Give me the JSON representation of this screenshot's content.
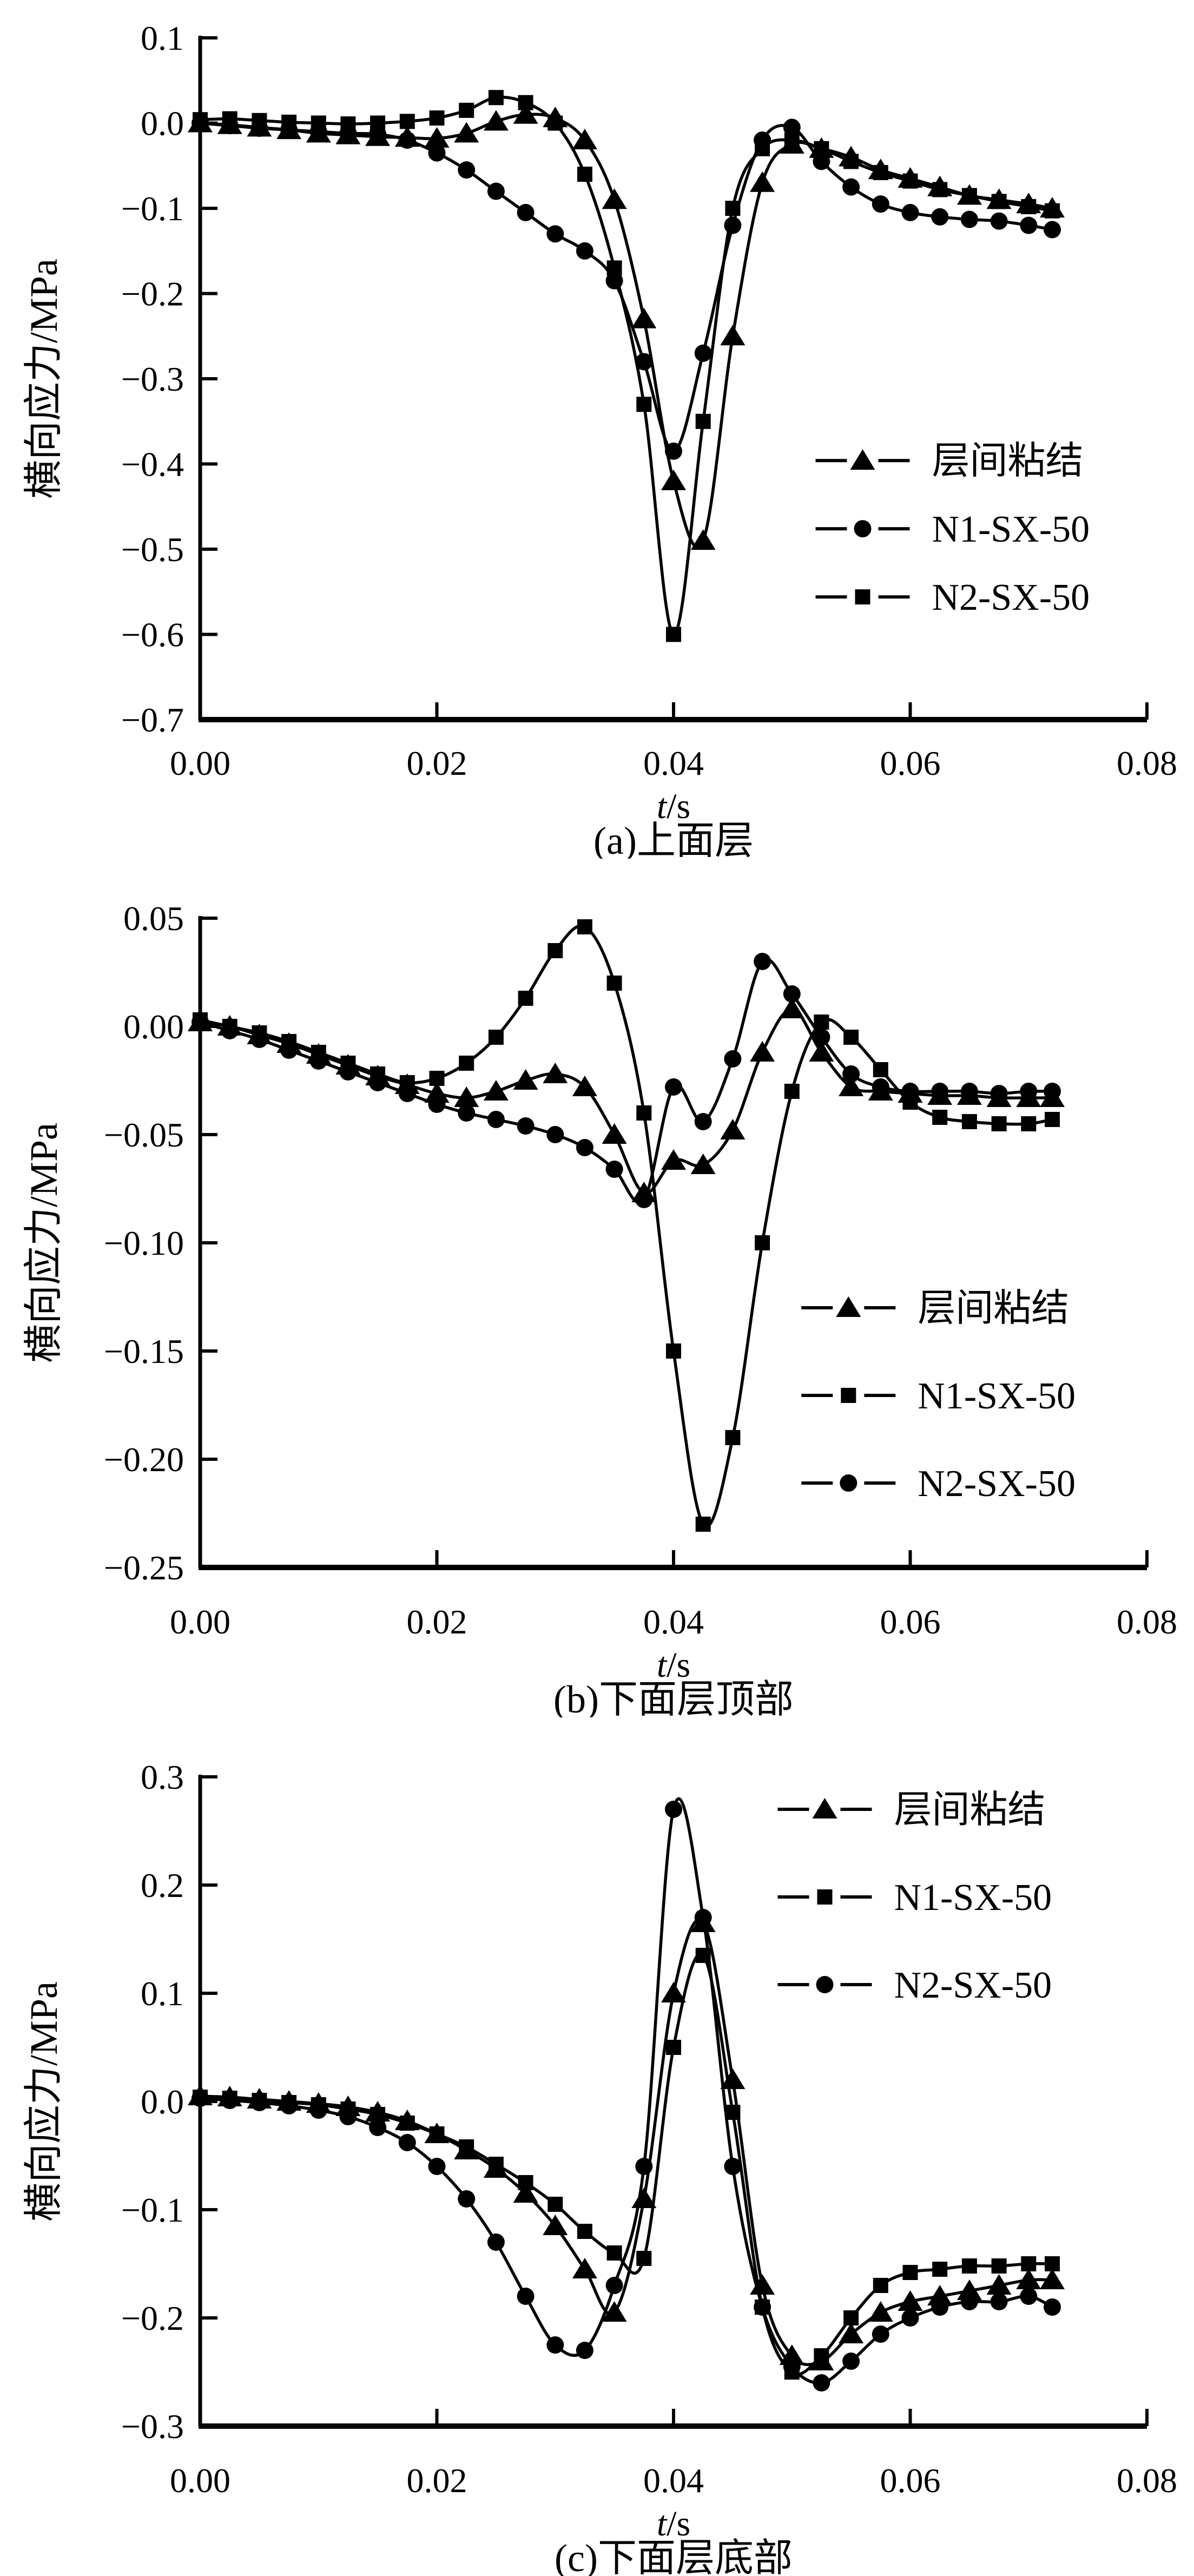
{
  "page": {
    "background": "#ffffff",
    "ink_color": "#000000"
  },
  "chart_data": [
    {
      "id": "a",
      "type": "line",
      "caption": "(a)上面层",
      "xlabel": {
        "italic": "t",
        "plain": "/s"
      },
      "ylabel": "横向应力/MPa",
      "xlim": [
        0,
        0.08
      ],
      "ylim": [
        -0.7,
        0.1
      ],
      "grid": false,
      "legend_position": "inside-middle-right",
      "legend": {
        "fx": 0.65,
        "rows_fy": [
          0.62,
          0.72,
          0.82
        ]
      },
      "xticks": [
        {
          "v": 0.0,
          "label": "0.00"
        },
        {
          "v": 0.02,
          "label": "0.02"
        },
        {
          "v": 0.04,
          "label": "0.04"
        },
        {
          "v": 0.06,
          "label": "0.06"
        },
        {
          "v": 0.08,
          "label": "0.08"
        }
      ],
      "yticks": [
        {
          "v": 0.1,
          "label": "0.1"
        },
        {
          "v": 0.0,
          "label": "0.0"
        },
        {
          "v": -0.1,
          "label": "−0.1"
        },
        {
          "v": -0.2,
          "label": "−0.2"
        },
        {
          "v": -0.3,
          "label": "−0.3"
        },
        {
          "v": -0.4,
          "label": "−0.4"
        },
        {
          "v": -0.5,
          "label": "−0.5"
        },
        {
          "v": -0.6,
          "label": "−0.6"
        },
        {
          "v": -0.7,
          "label": "−0.7"
        }
      ],
      "x": [
        0,
        0.0025,
        0.005,
        0.0075,
        0.01,
        0.0125,
        0.015,
        0.0175,
        0.02,
        0.0225,
        0.025,
        0.0275,
        0.03,
        0.0325,
        0.035,
        0.0375,
        0.04,
        0.0425,
        0.045,
        0.0475,
        0.05,
        0.0525,
        0.055,
        0.0575,
        0.06,
        0.0625,
        0.065,
        0.0675,
        0.07,
        0.072
      ],
      "series": [
        {
          "name": "层间粘结",
          "marker": "triangle",
          "y": [
            0.0,
            -0.002,
            -0.005,
            -0.008,
            -0.012,
            -0.014,
            -0.016,
            -0.017,
            -0.018,
            -0.012,
            0.002,
            0.01,
            0.006,
            -0.02,
            -0.09,
            -0.23,
            -0.42,
            -0.49,
            -0.25,
            -0.07,
            -0.025,
            -0.03,
            -0.04,
            -0.055,
            -0.065,
            -0.075,
            -0.085,
            -0.09,
            -0.095,
            -0.1
          ]
        },
        {
          "name": "N1-SX-50",
          "marker": "circle",
          "y": [
            0.0,
            -0.003,
            -0.006,
            -0.008,
            -0.01,
            -0.012,
            -0.013,
            -0.02,
            -0.035,
            -0.055,
            -0.08,
            -0.105,
            -0.13,
            -0.15,
            -0.185,
            -0.28,
            -0.385,
            -0.27,
            -0.12,
            -0.02,
            -0.005,
            -0.045,
            -0.075,
            -0.095,
            -0.105,
            -0.11,
            -0.113,
            -0.115,
            -0.12,
            -0.125
          ]
        },
        {
          "name": "N2-SX-50",
          "marker": "square",
          "y": [
            0.004,
            0.005,
            0.003,
            0.001,
            0.0,
            -0.001,
            0.0,
            0.002,
            0.006,
            0.015,
            0.03,
            0.024,
            0.0,
            -0.06,
            -0.17,
            -0.33,
            -0.6,
            -0.35,
            -0.1,
            -0.03,
            -0.02,
            -0.03,
            -0.045,
            -0.058,
            -0.068,
            -0.078,
            -0.085,
            -0.092,
            -0.098,
            -0.103
          ]
        }
      ]
    },
    {
      "id": "b",
      "type": "line",
      "caption": "(b)下面层顶部",
      "xlabel": {
        "italic": "t",
        "plain": "/s"
      },
      "ylabel": "横向应力/MPa",
      "xlim": [
        0,
        0.08
      ],
      "ylim": [
        -0.25,
        0.05
      ],
      "grid": false,
      "legend_position": "inside-lower-right",
      "legend": {
        "fx": 0.635,
        "rows_fy": [
          0.6,
          0.735,
          0.87
        ]
      },
      "xticks": [
        {
          "v": 0.0,
          "label": "0.00"
        },
        {
          "v": 0.02,
          "label": "0.02"
        },
        {
          "v": 0.04,
          "label": "0.04"
        },
        {
          "v": 0.06,
          "label": "0.06"
        },
        {
          "v": 0.08,
          "label": "0.08"
        }
      ],
      "yticks": [
        {
          "v": 0.05,
          "label": "0.05"
        },
        {
          "v": 0.0,
          "label": "0.00"
        },
        {
          "v": -0.05,
          "label": "−0.05"
        },
        {
          "v": -0.1,
          "label": "−0.10"
        },
        {
          "v": -0.15,
          "label": "−0.15"
        },
        {
          "v": -0.2,
          "label": "−0.20"
        },
        {
          "v": -0.25,
          "label": "−0.25"
        }
      ],
      "x": [
        0,
        0.0025,
        0.005,
        0.0075,
        0.01,
        0.0125,
        0.015,
        0.0175,
        0.02,
        0.0225,
        0.025,
        0.0275,
        0.03,
        0.0325,
        0.035,
        0.0375,
        0.04,
        0.0425,
        0.045,
        0.0475,
        0.05,
        0.0525,
        0.055,
        0.0575,
        0.06,
        0.0625,
        0.065,
        0.0675,
        0.07,
        0.072
      ],
      "series": [
        {
          "name": "层间粘结",
          "marker": "triangle",
          "y": [
            0.002,
            0.0,
            -0.004,
            -0.008,
            -0.013,
            -0.018,
            -0.023,
            -0.027,
            -0.031,
            -0.033,
            -0.03,
            -0.025,
            -0.022,
            -0.028,
            -0.05,
            -0.077,
            -0.062,
            -0.064,
            -0.048,
            -0.012,
            0.008,
            -0.012,
            -0.028,
            -0.03,
            -0.031,
            -0.032,
            -0.032,
            -0.033,
            -0.033,
            -0.033
          ]
        },
        {
          "name": "N1-SX-50",
          "marker": "square",
          "y": [
            0.003,
            0.0,
            -0.003,
            -0.007,
            -0.012,
            -0.017,
            -0.022,
            -0.026,
            -0.024,
            -0.017,
            -0.005,
            0.013,
            0.035,
            0.046,
            0.02,
            -0.04,
            -0.15,
            -0.23,
            -0.19,
            -0.1,
            -0.03,
            0.002,
            -0.005,
            -0.02,
            -0.035,
            -0.042,
            -0.044,
            -0.045,
            -0.045,
            -0.043
          ]
        },
        {
          "name": "N2-SX-50",
          "marker": "circle",
          "y": [
            0.002,
            -0.002,
            -0.006,
            -0.011,
            -0.016,
            -0.021,
            -0.026,
            -0.031,
            -0.036,
            -0.04,
            -0.043,
            -0.046,
            -0.05,
            -0.056,
            -0.066,
            -0.08,
            -0.028,
            -0.044,
            -0.015,
            0.03,
            0.015,
            -0.005,
            -0.022,
            -0.028,
            -0.03,
            -0.03,
            -0.03,
            -0.031,
            -0.03,
            -0.03
          ]
        }
      ]
    },
    {
      "id": "c",
      "type": "line",
      "caption": "(c)下面层底部",
      "xlabel": {
        "italic": "t",
        "plain": "/s"
      },
      "ylabel": "横向应力/MPa",
      "xlim": [
        0,
        0.08
      ],
      "ylim": [
        -0.3,
        0.3
      ],
      "grid": false,
      "legend_position": "inside-upper-right",
      "legend": {
        "fx": 0.61,
        "rows_fy": [
          0.05,
          0.185,
          0.32
        ]
      },
      "xticks": [
        {
          "v": 0.0,
          "label": "0.00"
        },
        {
          "v": 0.02,
          "label": "0.02"
        },
        {
          "v": 0.04,
          "label": "0.04"
        },
        {
          "v": 0.06,
          "label": "0.06"
        },
        {
          "v": 0.08,
          "label": "0.08"
        }
      ],
      "yticks": [
        {
          "v": 0.3,
          "label": "0.3"
        },
        {
          "v": 0.2,
          "label": "0.2"
        },
        {
          "v": 0.1,
          "label": "0.1"
        },
        {
          "v": 0.0,
          "label": "0.0"
        },
        {
          "v": -0.1,
          "label": "−0.1"
        },
        {
          "v": -0.2,
          "label": "−0.2"
        },
        {
          "v": -0.3,
          "label": "−0.3"
        }
      ],
      "x": [
        0,
        0.0025,
        0.005,
        0.0075,
        0.01,
        0.0125,
        0.015,
        0.0175,
        0.02,
        0.0225,
        0.025,
        0.0275,
        0.03,
        0.0325,
        0.035,
        0.0375,
        0.04,
        0.0425,
        0.045,
        0.0475,
        0.05,
        0.0525,
        0.055,
        0.0575,
        0.06,
        0.0625,
        0.065,
        0.0675,
        0.07,
        0.072
      ],
      "series": [
        {
          "name": "层间粘结",
          "marker": "triangle",
          "y": [
            0.005,
            0.004,
            0.002,
            0.0,
            -0.002,
            -0.005,
            -0.01,
            -0.018,
            -0.03,
            -0.045,
            -0.062,
            -0.085,
            -0.115,
            -0.155,
            -0.195,
            -0.09,
            0.1,
            0.165,
            0.02,
            -0.17,
            -0.235,
            -0.24,
            -0.215,
            -0.195,
            -0.185,
            -0.18,
            -0.175,
            -0.17,
            -0.165,
            -0.165
          ]
        },
        {
          "name": "N1-SX-50",
          "marker": "square",
          "y": [
            0.004,
            0.003,
            0.001,
            -0.001,
            -0.003,
            -0.007,
            -0.012,
            -0.02,
            -0.03,
            -0.042,
            -0.058,
            -0.075,
            -0.095,
            -0.12,
            -0.14,
            -0.145,
            0.05,
            0.135,
            -0.01,
            -0.19,
            -0.25,
            -0.235,
            -0.2,
            -0.17,
            -0.158,
            -0.155,
            -0.152,
            -0.152,
            -0.15,
            -0.15
          ]
        },
        {
          "name": "N2-SX-50",
          "marker": "circle",
          "y": [
            0.003,
            0.001,
            -0.001,
            -0.004,
            -0.008,
            -0.014,
            -0.024,
            -0.038,
            -0.06,
            -0.09,
            -0.13,
            -0.18,
            -0.225,
            -0.23,
            -0.17,
            -0.06,
            0.27,
            0.17,
            -0.06,
            -0.19,
            -0.245,
            -0.26,
            -0.24,
            -0.215,
            -0.2,
            -0.19,
            -0.185,
            -0.185,
            -0.18,
            -0.19
          ]
        }
      ]
    }
  ]
}
